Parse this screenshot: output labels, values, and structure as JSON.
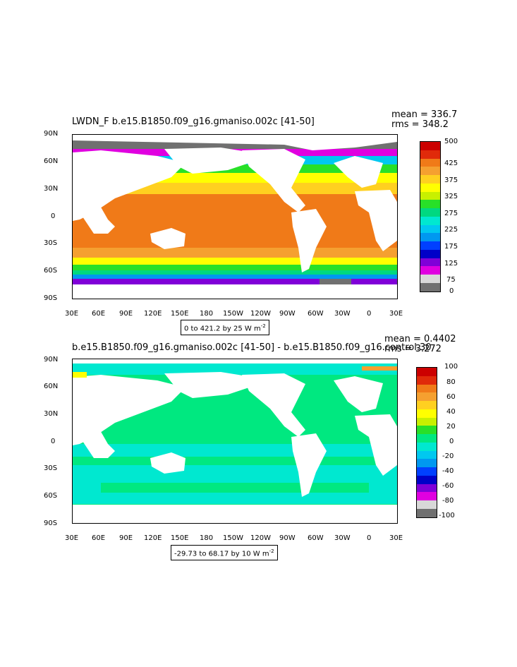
{
  "panel1": {
    "title": "LWDN_F  b.e15.B1850.f09_g16.gmaniso.002c  [41-50]",
    "mean_label": "mean = 336.7",
    "rms_label": "rms = 348.2",
    "range_label": "0 to 421.2 by 25  W m",
    "range_exp": "-2",
    "yticks": [
      "90N",
      "60N",
      "30N",
      "0",
      "30S",
      "60S",
      "90S"
    ],
    "xticks": [
      "30E",
      "60E",
      "90E",
      "120E",
      "150E",
      "180",
      "150W",
      "120W",
      "90W",
      "60W",
      "30W",
      "0",
      "30E"
    ],
    "colorbar_labels": [
      "500",
      "425",
      "375",
      "325",
      "275",
      "225",
      "175",
      "125",
      "75",
      "0"
    ],
    "colors": [
      "#cc0000",
      "#e02a0a",
      "#f07a18",
      "#f5a030",
      "#ffd020",
      "#ffff00",
      "#c8f000",
      "#28e028",
      "#00d880",
      "#00e8d0",
      "#00c8f0",
      "#0098f0",
      "#0040ff",
      "#0000c8",
      "#8000d8",
      "#e000e0",
      "#d8d8d8",
      "#707070"
    ]
  },
  "panel2": {
    "title": "b.e15.B1850.f09_g16.gmaniso.002c  [41-50]  -  b.e15.B1850.f09_g16.control.30",
    "mean_label": "mean = 0.4402",
    "rms_label": "rms = 3.272",
    "range_label": "-29.73 to 68.17 by 10  W m",
    "range_exp": "-2",
    "yticks": [
      "90N",
      "60N",
      "30N",
      "0",
      "30S",
      "60S",
      "90S"
    ],
    "xticks": [
      "30E",
      "60E",
      "90E",
      "120E",
      "150E",
      "180",
      "150W",
      "120W",
      "90W",
      "60W",
      "30W",
      "0",
      "30E"
    ],
    "colorbar_labels": [
      "100",
      "80",
      "60",
      "40",
      "20",
      "0",
      "-20",
      "-40",
      "-60",
      "-80",
      "-100"
    ],
    "colors": [
      "#cc0000",
      "#e02a0a",
      "#f07a18",
      "#f5a030",
      "#ffd020",
      "#ffff00",
      "#c8f000",
      "#28e028",
      "#00e880",
      "#00e8d0",
      "#00c8f0",
      "#0098f0",
      "#0040ff",
      "#0000c8",
      "#8000d8",
      "#e000e0",
      "#d8d8d8",
      "#707070"
    ]
  }
}
